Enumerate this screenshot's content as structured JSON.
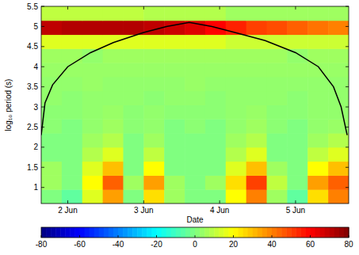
{
  "chart_data": {
    "type": "heatmap",
    "x_label": "Date",
    "y_label": "log₁₀ period (s)",
    "xlim": [
      1.65,
      5.7
    ],
    "ylim": [
      0.6,
      5.5
    ],
    "xticks": [
      {
        "value": 2,
        "label": "2 Jun"
      },
      {
        "value": 3,
        "label": "3 Jun"
      },
      {
        "value": 4,
        "label": "4 Jun"
      },
      {
        "value": 5,
        "label": "5 Jun"
      }
    ],
    "yticks": [
      1,
      1.5,
      2,
      2.5,
      3,
      3.5,
      4,
      4.5,
      5,
      5.5
    ],
    "x_edges": [
      1.65,
      1.92,
      2.19,
      2.46,
      2.73,
      3.0,
      3.27,
      3.54,
      3.81,
      4.08,
      4.35,
      4.62,
      4.89,
      5.16,
      5.43,
      5.7
    ],
    "y_edges": [
      0.6,
      0.95,
      1.3,
      1.65,
      2.0,
      2.35,
      2.7,
      3.05,
      3.4,
      3.75,
      4.1,
      4.45,
      4.8,
      5.15,
      5.5
    ],
    "cells": [
      [
        0,
        -5,
        15,
        35,
        0,
        25,
        5,
        0,
        0,
        20,
        40,
        5,
        -5,
        25,
        40
      ],
      [
        5,
        0,
        20,
        45,
        5,
        35,
        5,
        0,
        5,
        25,
        50,
        10,
        0,
        35,
        45
      ],
      [
        5,
        0,
        15,
        30,
        0,
        20,
        0,
        0,
        0,
        15,
        30,
        5,
        0,
        20,
        30
      ],
      [
        0,
        0,
        8,
        15,
        0,
        10,
        0,
        0,
        0,
        8,
        15,
        0,
        0,
        10,
        15
      ],
      [
        0,
        0,
        5,
        8,
        0,
        5,
        0,
        0,
        0,
        5,
        8,
        0,
        0,
        5,
        8
      ],
      [
        2,
        0,
        3,
        5,
        2,
        3,
        0,
        2,
        0,
        3,
        5,
        2,
        0,
        3,
        4
      ],
      [
        2,
        2,
        3,
        4,
        2,
        3,
        2,
        2,
        2,
        3,
        4,
        2,
        2,
        3,
        3
      ],
      [
        3,
        2,
        3,
        3,
        3,
        2,
        3,
        3,
        2,
        3,
        3,
        3,
        2,
        3,
        3
      ],
      [
        3,
        3,
        4,
        3,
        3,
        3,
        3,
        4,
        3,
        3,
        3,
        3,
        3,
        3,
        3
      ],
      [
        4,
        4,
        4,
        4,
        4,
        4,
        4,
        4,
        4,
        4,
        4,
        4,
        4,
        4,
        4
      ],
      [
        5,
        5,
        3,
        5,
        5,
        5,
        5,
        5,
        5,
        5,
        5,
        5,
        3,
        5,
        5
      ],
      [
        15,
        15,
        15,
        15,
        15,
        15,
        15,
        15,
        15,
        12,
        12,
        12,
        12,
        12,
        12
      ],
      [
        70,
        72,
        72,
        72,
        72,
        70,
        68,
        65,
        60,
        55,
        50,
        48,
        45,
        42,
        40
      ],
      [
        10,
        10,
        10,
        10,
        10,
        8,
        8,
        8,
        8,
        5,
        5,
        5,
        5,
        5,
        5
      ]
    ],
    "colorbar": {
      "range": [
        -80,
        80
      ],
      "ticks": [
        -80,
        -60,
        -40,
        -20,
        0,
        20,
        40,
        60,
        80
      ]
    },
    "series": [
      {
        "type": "line",
        "color": "#000000",
        "x": [
          1.65,
          1.7,
          1.8,
          2.0,
          2.3,
          2.6,
          3.0,
          3.3,
          3.6,
          3.9,
          4.2,
          4.6,
          5.0,
          5.3,
          5.5,
          5.6,
          5.68
        ],
        "values": [
          2.3,
          3.1,
          3.55,
          4.0,
          4.35,
          4.6,
          4.85,
          5.0,
          5.1,
          5.0,
          4.85,
          4.65,
          4.35,
          4.0,
          3.5,
          3.0,
          2.3
        ]
      }
    ]
  }
}
